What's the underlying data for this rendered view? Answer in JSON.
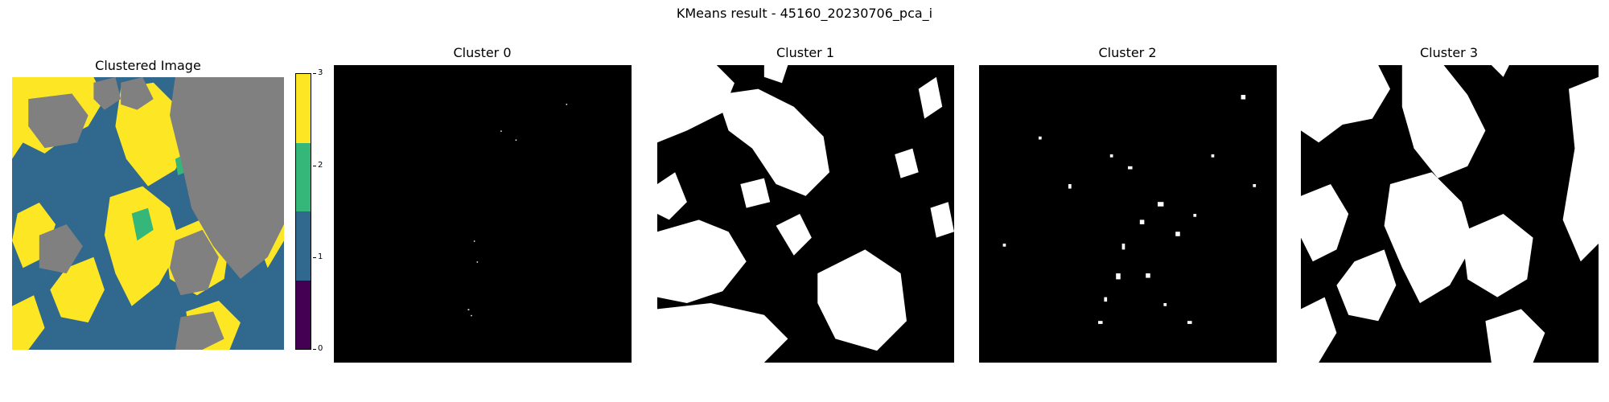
{
  "figure": {
    "title": "KMeans result - 45160_20230706_pca_i"
  },
  "panels": [
    {
      "title": "Clustered Image"
    },
    {
      "title": "Cluster 0"
    },
    {
      "title": "Cluster 1"
    },
    {
      "title": "Cluster 2"
    },
    {
      "title": "Cluster 3"
    }
  ],
  "colorbar": {
    "ticks": [
      "0",
      "1",
      "2",
      "3"
    ],
    "colors": [
      "#440154",
      "#31688e",
      "#35b779",
      "#fde725"
    ]
  },
  "colors": {
    "masked_gray": "#808080",
    "cluster_mask_on": "#ffffff",
    "cluster_mask_off": "#000000"
  }
}
